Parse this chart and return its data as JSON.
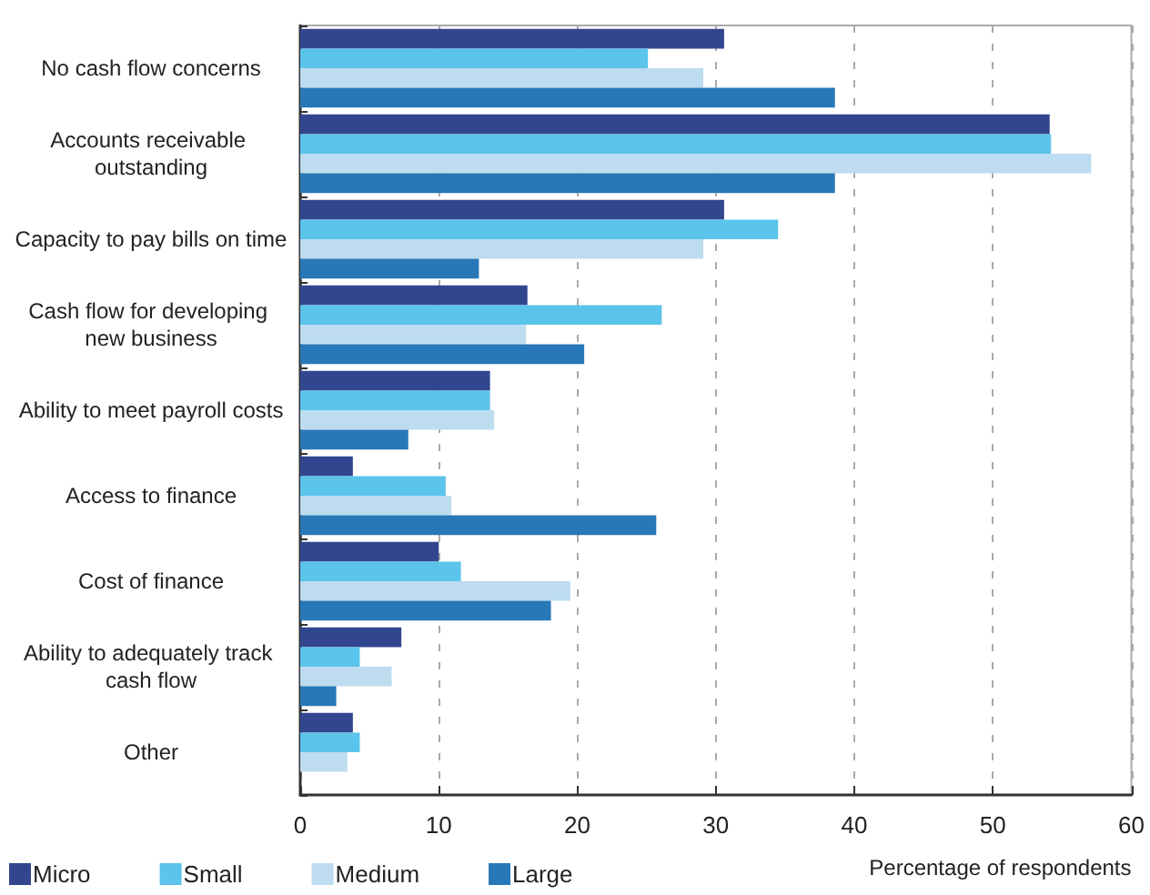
{
  "chart_data": {
    "type": "bar",
    "orientation": "horizontal",
    "xlabel": "Percentage of respondents",
    "categories": [
      "No cash flow concerns",
      "Accounts receivable outstanding",
      "Capacity to pay bills on time",
      "Cash flow for developing new business",
      "Ability to meet payroll costs",
      "Access to finance",
      "Cost of finance",
      "Ability to adequately track cash flow",
      "Other"
    ],
    "series": [
      {
        "name": "Micro",
        "color": "#32468f",
        "values": [
          30.6,
          54.1,
          30.6,
          16.4,
          13.7,
          3.8,
          10.0,
          7.3,
          3.8
        ]
      },
      {
        "name": "Small",
        "color": "#5bc4ea",
        "values": [
          25.1,
          54.2,
          34.5,
          26.1,
          13.7,
          10.5,
          11.6,
          4.3,
          4.3
        ]
      },
      {
        "name": "Medium",
        "color": "#bddcf0",
        "values": [
          29.1,
          57.1,
          29.1,
          16.3,
          14.0,
          10.9,
          19.5,
          6.6,
          3.4
        ]
      },
      {
        "name": "Large",
        "color": "#2878b8",
        "values": [
          38.6,
          38.6,
          12.9,
          20.5,
          7.8,
          25.7,
          18.1,
          2.6,
          null
        ]
      }
    ],
    "xlim": [
      0,
      60
    ],
    "xticks": [
      0,
      10,
      20,
      30,
      40,
      50,
      60
    ],
    "grid": "x",
    "legend": "bottom left"
  }
}
